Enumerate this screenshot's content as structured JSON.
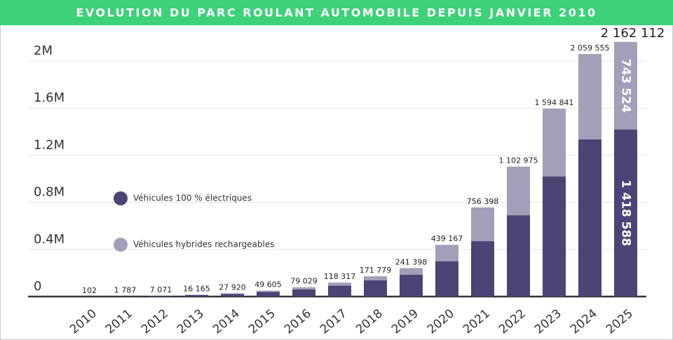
{
  "chart_data": {
    "type": "stacked-bar",
    "title": "EVOLUTION DU PARC ROULANT AUTOMOBILE DEPUIS JANVIER 2010",
    "categories": [
      "2010",
      "2011",
      "2012",
      "2013",
      "2014",
      "2015",
      "2016",
      "2017",
      "2018",
      "2019",
      "2020",
      "2021",
      "2022",
      "2023",
      "2024",
      "2025"
    ],
    "series": [
      {
        "name": "Véhicules 100 % électriques",
        "color": "#4b4475",
        "values": [
          100,
          1500,
          6000,
          13000,
          22000,
          40000,
          60000,
          93000,
          137000,
          186000,
          300000,
          470000,
          690000,
          1020000,
          1335000,
          1418588
        ],
        "value_labels": [
          null,
          null,
          null,
          null,
          null,
          null,
          null,
          null,
          null,
          null,
          null,
          null,
          null,
          null,
          null,
          "1 418 588"
        ]
      },
      {
        "name": "Véhicules hybrides rechargeables",
        "color": "#a39fb8",
        "values": [
          2,
          287,
          1071,
          3165,
          5920,
          9605,
          19029,
          25317,
          34779,
          55398,
          139167,
          286398,
          412975,
          574841,
          724555,
          743524
        ],
        "value_labels": [
          null,
          null,
          null,
          null,
          null,
          null,
          null,
          null,
          null,
          null,
          null,
          null,
          null,
          null,
          null,
          "743 524"
        ]
      }
    ],
    "totals": [
      102,
      1787,
      7071,
      16165,
      27920,
      49605,
      79029,
      118317,
      171779,
      241398,
      439167,
      756398,
      1102975,
      1594841,
      2059555,
      2162112
    ],
    "total_labels": [
      "102",
      "1 787",
      "7 071",
      "16 165",
      "27 920",
      "49 605",
      "79 029",
      "118 317",
      "171 779",
      "241 398",
      "439 167",
      "756 398",
      "1 102 975",
      "1 594 841",
      "2 059 555",
      "2 162 112"
    ],
    "ylim": [
      0,
      2200000
    ],
    "yticks": [
      0,
      {
        "value": 400000,
        "label": "0.4M"
      },
      {
        "value": 800000,
        "label": "0.8M"
      },
      {
        "value": 1200000,
        "label": "1.2M"
      },
      {
        "value": 1600000,
        "label": "1.6M"
      },
      {
        "value": 2000000,
        "label": "2M"
      }
    ],
    "grid": true,
    "legend": "left"
  }
}
